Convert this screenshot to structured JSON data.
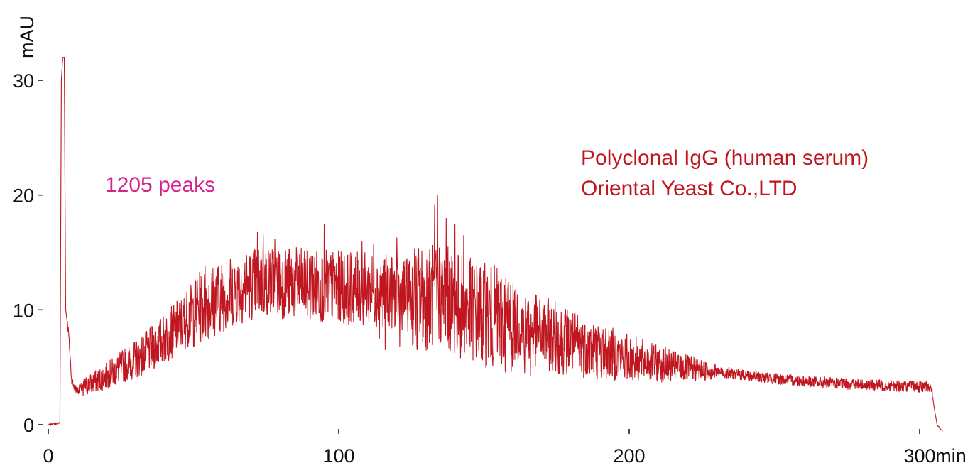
{
  "chart_data": {
    "type": "line",
    "title": "",
    "xlabel": "min",
    "ylabel": "mAU",
    "xlim": [
      0,
      310
    ],
    "ylim": [
      -1,
      32
    ],
    "x_ticks": [
      0,
      100,
      200,
      300
    ],
    "y_ticks": [
      0,
      10,
      20,
      30
    ],
    "grid": false,
    "line_color": "#c0161f",
    "annotations": {
      "peaks": "1205 peaks",
      "peaks_color": "#d4228a",
      "sample_line1": "Polyclonal IgG (human serum)",
      "sample_line2": "Oriental Yeast Co.,LTD",
      "sample_color": "#c0161f"
    },
    "series": [
      {
        "baseline": [
          [
            0,
            0.0
          ],
          [
            3,
            0.1
          ],
          [
            4,
            0.2
          ],
          [
            4.5,
            30
          ],
          [
            5,
            32
          ],
          [
            5.5,
            32
          ],
          [
            6,
            10
          ],
          [
            7,
            8
          ],
          [
            8,
            4
          ],
          [
            9,
            3.2
          ],
          [
            10,
            3.0
          ],
          [
            12,
            3.3
          ],
          [
            15,
            3.6
          ],
          [
            20,
            4.2
          ],
          [
            25,
            5.0
          ],
          [
            30,
            5.7
          ],
          [
            35,
            6.5
          ],
          [
            40,
            7.5
          ],
          [
            45,
            8.6
          ],
          [
            50,
            9.8
          ],
          [
            55,
            10.6
          ],
          [
            60,
            11.2
          ],
          [
            65,
            11.8
          ],
          [
            70,
            12.3
          ],
          [
            75,
            12.5
          ],
          [
            80,
            12.4
          ],
          [
            90,
            12.2
          ],
          [
            100,
            12.0
          ],
          [
            110,
            11.8
          ],
          [
            120,
            11.5
          ],
          [
            130,
            11.0
          ],
          [
            135,
            11.5
          ],
          [
            140,
            10.5
          ],
          [
            150,
            9.6
          ],
          [
            160,
            8.8
          ],
          [
            170,
            8.0
          ],
          [
            180,
            7.2
          ],
          [
            190,
            6.4
          ],
          [
            200,
            5.8
          ],
          [
            210,
            5.3
          ],
          [
            220,
            4.9
          ],
          [
            230,
            4.6
          ],
          [
            240,
            4.3
          ],
          [
            250,
            4.0
          ],
          [
            260,
            3.8
          ],
          [
            270,
            3.6
          ],
          [
            280,
            3.5
          ],
          [
            290,
            3.4
          ],
          [
            300,
            3.3
          ],
          [
            304,
            3.3
          ],
          [
            305,
            1.5
          ],
          [
            306,
            0.0
          ],
          [
            308,
            -0.6
          ]
        ],
        "peaks": [
          [
            54,
            13.8
          ],
          [
            72,
            16.8
          ],
          [
            74,
            16.5
          ],
          [
            78,
            16.2
          ],
          [
            95,
            17.5
          ],
          [
            108,
            16.0
          ],
          [
            112,
            15.8
          ],
          [
            120,
            16.3
          ],
          [
            133,
            19.2
          ],
          [
            134,
            20.0
          ],
          [
            137,
            18.0
          ],
          [
            140,
            17.5
          ],
          [
            143,
            16.5
          ],
          [
            166,
            11.5
          ]
        ],
        "dips": [
          [
            12,
            2.5
          ],
          [
            114,
            7.5
          ],
          [
            116,
            6.5
          ],
          [
            121,
            6.8
          ],
          [
            127,
            6.5
          ],
          [
            164,
            4.5
          ],
          [
            166,
            4.2
          ]
        ]
      }
    ]
  }
}
